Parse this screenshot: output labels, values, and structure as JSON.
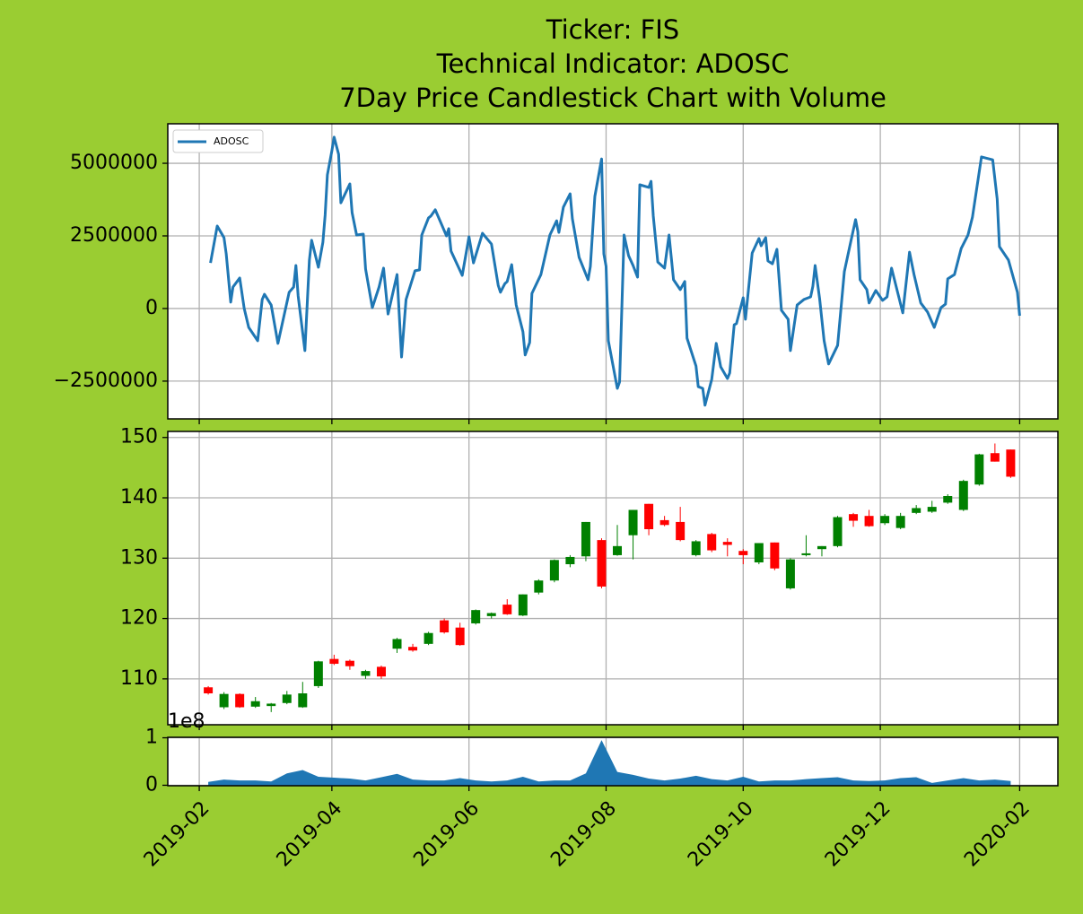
{
  "chart_data": [
    {
      "type": "line",
      "title": [
        "Ticker: FIS",
        "Technical Indicator: ADOSC",
        "7Day Price Candlestick Chart with Volume"
      ],
      "x": [
        "2019-02-06",
        "2019-02-09",
        "2019-02-12",
        "2019-02-13",
        "2019-02-15",
        "2019-02-16",
        "2019-02-19",
        "2019-02-21",
        "2019-02-23",
        "2019-02-27",
        "2019-03-01",
        "2019-03-02",
        "2019-03-05",
        "2019-03-08",
        "2019-03-13",
        "2019-03-15",
        "2019-03-16",
        "2019-03-17",
        "2019-03-20",
        "2019-03-22",
        "2019-03-23",
        "2019-03-26",
        "2019-03-28",
        "2019-03-29",
        "2019-03-30",
        "2019-04-01",
        "2019-04-02",
        "2019-04-04",
        "2019-04-05",
        "2019-04-09",
        "2019-04-10",
        "2019-04-12",
        "2019-04-15",
        "2019-04-16",
        "2019-04-19",
        "2019-04-22",
        "2019-04-24",
        "2019-04-26",
        "2019-04-30",
        "2019-05-02",
        "2019-05-04",
        "2019-05-08",
        "2019-05-10",
        "2019-05-11",
        "2019-05-14",
        "2019-05-15",
        "2019-05-17",
        "2019-05-22",
        "2019-05-23",
        "2019-05-24",
        "2019-05-29",
        "2019-06-01",
        "2019-06-03",
        "2019-06-07",
        "2019-06-11",
        "2019-06-14",
        "2019-06-15",
        "2019-06-17",
        "2019-06-18",
        "2019-06-20",
        "2019-06-22",
        "2019-06-25",
        "2019-06-26",
        "2019-06-28",
        "2019-06-29",
        "2019-07-03",
        "2019-07-07",
        "2019-07-10",
        "2019-07-11",
        "2019-07-13",
        "2019-07-16",
        "2019-07-17",
        "2019-07-20",
        "2019-07-24",
        "2019-07-25",
        "2019-07-27",
        "2019-07-30",
        "2019-07-31",
        "2019-08-01",
        "2019-08-02",
        "2019-08-06",
        "2019-08-07",
        "2019-08-09",
        "2019-08-11",
        "2019-08-13",
        "2019-08-15",
        "2019-08-16",
        "2019-08-20",
        "2019-08-21",
        "2019-08-22",
        "2019-08-24",
        "2019-08-27",
        "2019-08-29",
        "2019-08-31",
        "2019-09-03",
        "2019-09-05",
        "2019-09-06",
        "2019-09-10",
        "2019-09-11",
        "2019-09-13",
        "2019-09-14",
        "2019-09-17",
        "2019-09-19",
        "2019-09-21",
        "2019-09-24",
        "2019-09-25",
        "2019-09-27",
        "2019-09-28",
        "2019-10-01",
        "2019-10-02",
        "2019-10-05",
        "2019-10-08",
        "2019-10-09",
        "2019-10-11",
        "2019-10-12",
        "2019-10-14",
        "2019-10-16",
        "2019-10-18",
        "2019-10-21",
        "2019-10-22",
        "2019-10-25",
        "2019-10-28",
        "2019-10-31",
        "2019-11-01",
        "2019-11-02",
        "2019-11-04",
        "2019-11-06",
        "2019-11-08",
        "2019-11-12",
        "2019-11-15",
        "2019-11-18",
        "2019-11-20",
        "2019-11-21",
        "2019-11-22",
        "2019-11-25",
        "2019-11-26",
        "2019-11-29",
        "2019-12-02",
        "2019-12-04",
        "2019-12-06",
        "2019-12-11",
        "2019-12-14",
        "2019-12-16",
        "2019-12-19",
        "2019-12-22",
        "2019-12-25",
        "2019-12-28",
        "2019-12-30",
        "2019-12-31",
        "2020-01-03",
        "2020-01-06",
        "2020-01-09",
        "2020-01-11",
        "2020-01-15",
        "2020-01-20",
        "2020-01-22",
        "2020-01-23",
        "2020-01-27",
        "2020-01-31",
        "2020-02-01"
      ],
      "series": [
        {
          "name": "ADOSC",
          "color": "#1f77b4",
          "values": [
            1570000,
            2840000,
            2440000,
            1880000,
            220000,
            740000,
            1050000,
            0,
            -650000,
            -1110000,
            310000,
            490000,
            120000,
            -1200000,
            560000,
            740000,
            1480000,
            430000,
            -1450000,
            1670000,
            2350000,
            1420000,
            2280000,
            3210000,
            4600000,
            5430000,
            5900000,
            5310000,
            3640000,
            4290000,
            3300000,
            2530000,
            2560000,
            1360000,
            30000,
            740000,
            1390000,
            -190000,
            1170000,
            -1670000,
            310000,
            1300000,
            1330000,
            2530000,
            3120000,
            3180000,
            3400000,
            2500000,
            2750000,
            1980000,
            1140000,
            2470000,
            1570000,
            2590000,
            2220000,
            800000,
            560000,
            860000,
            930000,
            1510000,
            120000,
            -800000,
            -1600000,
            -1170000,
            520000,
            1170000,
            2530000,
            3020000,
            2620000,
            3490000,
            3950000,
            3090000,
            1760000,
            990000,
            1450000,
            3860000,
            5150000,
            1880000,
            1450000,
            -1110000,
            -2750000,
            -2530000,
            2530000,
            1820000,
            1480000,
            1080000,
            4260000,
            4170000,
            4380000,
            3180000,
            1600000,
            1390000,
            2530000,
            990000,
            650000,
            930000,
            -1020000,
            -1980000,
            -2690000,
            -2750000,
            -3330000,
            -2440000,
            -1200000,
            -2010000,
            -2410000,
            -2220000,
            -560000,
            -520000,
            370000,
            -370000,
            1910000,
            2410000,
            2160000,
            2440000,
            1640000,
            1540000,
            2040000,
            -60000,
            -370000,
            -1450000,
            120000,
            310000,
            400000,
            770000,
            1480000,
            340000,
            -1110000,
            -1910000,
            -1270000,
            1270000,
            2350000,
            3060000,
            2650000,
            990000,
            650000,
            190000,
            620000,
            280000,
            400000,
            1390000,
            -150000,
            1940000,
            1170000,
            190000,
            -120000,
            -650000,
            30000,
            150000,
            1020000,
            1170000,
            2070000,
            2530000,
            3150000,
            5220000,
            5120000,
            3770000,
            2130000,
            1670000,
            560000,
            -250000
          ]
        }
      ],
      "xlim": [
        "2019-01-18",
        "2020-02-18"
      ],
      "xticks": [
        "2019-02-01",
        "2019-04-01",
        "2019-06-01",
        "2019-08-01",
        "2019-10-01",
        "2019-12-01",
        "2020-02-01"
      ],
      "ylim": [
        -3800000,
        6360000
      ],
      "yticks": [
        {
          "value": -2500000,
          "label": "−2500000"
        },
        0,
        2500000,
        5000000
      ],
      "grid": true,
      "legend": "upper left"
    },
    {
      "type": "candlestick",
      "x": [
        "2019-02-05",
        "2019-02-12",
        "2019-02-19",
        "2019-02-26",
        "2019-03-05",
        "2019-03-12",
        "2019-03-19",
        "2019-03-26",
        "2019-04-02",
        "2019-04-09",
        "2019-04-16",
        "2019-04-23",
        "2019-04-30",
        "2019-05-07",
        "2019-05-14",
        "2019-05-21",
        "2019-05-28",
        "2019-06-04",
        "2019-06-11",
        "2019-06-18",
        "2019-06-25",
        "2019-07-02",
        "2019-07-09",
        "2019-07-16",
        "2019-07-23",
        "2019-07-30",
        "2019-08-06",
        "2019-08-13",
        "2019-08-20",
        "2019-08-27",
        "2019-09-03",
        "2019-09-10",
        "2019-09-17",
        "2019-09-24",
        "2019-10-01",
        "2019-10-08",
        "2019-10-15",
        "2019-10-22",
        "2019-10-29",
        "2019-11-05",
        "2019-11-12",
        "2019-11-19",
        "2019-11-26",
        "2019-12-03",
        "2019-12-10",
        "2019-12-17",
        "2019-12-24",
        "2019-12-31",
        "2020-01-07",
        "2020-01-14",
        "2020-01-21",
        "2020-01-28"
      ],
      "open": [
        108.6,
        105.3,
        107.5,
        105.4,
        105.5,
        106.0,
        105.3,
        108.8,
        113.3,
        113.0,
        110.5,
        112.0,
        115.0,
        115.3,
        115.8,
        119.7,
        118.5,
        119.2,
        120.4,
        122.3,
        120.5,
        124.3,
        126.3,
        129.0,
        130.3,
        133.0,
        130.5,
        133.8,
        139.0,
        136.3,
        136.0,
        130.5,
        134.0,
        132.7,
        131.2,
        129.3,
        132.6,
        125.0,
        130.5,
        131.5,
        132.0,
        137.3,
        137.0,
        135.8,
        135.0,
        137.5,
        137.7,
        139.2,
        138.0,
        142.2,
        147.4,
        148.0
      ],
      "high": [
        108.8,
        107.8,
        107.6,
        107.0,
        106.0,
        108.0,
        109.5,
        113.0,
        114.0,
        113.2,
        111.5,
        112.2,
        116.8,
        115.8,
        117.8,
        120.0,
        119.3,
        121.5,
        121.0,
        123.2,
        124.0,
        126.5,
        129.8,
        130.5,
        136.0,
        133.3,
        135.5,
        138.0,
        139.0,
        137.0,
        138.5,
        133.0,
        134.2,
        133.3,
        131.5,
        132.5,
        132.6,
        130.0,
        133.8,
        132.0,
        137.0,
        137.5,
        138.0,
        137.3,
        137.5,
        138.8,
        139.5,
        140.6,
        143.0,
        147.3,
        149.0,
        148.0
      ],
      "low": [
        107.4,
        105.0,
        105.2,
        105.2,
        104.5,
        105.8,
        105.2,
        108.5,
        112.3,
        111.5,
        110.0,
        110.0,
        114.3,
        114.5,
        115.6,
        117.5,
        115.5,
        119.0,
        120.0,
        120.6,
        120.4,
        124.0,
        126.0,
        128.5,
        129.5,
        125.0,
        130.4,
        129.8,
        133.8,
        135.3,
        132.8,
        130.3,
        131.0,
        130.3,
        129.0,
        129.0,
        128.0,
        124.8,
        130.3,
        130.3,
        131.8,
        135.2,
        135.2,
        135.5,
        134.8,
        137.3,
        137.5,
        139.0,
        137.8,
        142.0,
        146.0,
        143.3
      ],
      "close": [
        107.6,
        107.5,
        105.3,
        106.3,
        105.9,
        107.4,
        107.6,
        112.9,
        112.5,
        112.1,
        111.3,
        110.4,
        116.6,
        114.7,
        117.6,
        117.7,
        115.6,
        121.4,
        120.9,
        120.7,
        124.0,
        126.3,
        129.7,
        130.2,
        136.0,
        125.3,
        132.0,
        138.0,
        134.8,
        135.5,
        133.0,
        132.8,
        131.3,
        132.2,
        130.5,
        132.5,
        128.3,
        129.8,
        130.8,
        132.0,
        136.8,
        136.2,
        135.3,
        137.0,
        137.0,
        138.3,
        138.5,
        140.3,
        142.8,
        147.2,
        146.0,
        143.5
      ],
      "up_color": "green",
      "down_color": "red",
      "xlim": [
        "2019-01-18",
        "2020-02-18"
      ],
      "xticks": [
        "2019-02-01",
        "2019-04-01",
        "2019-06-01",
        "2019-08-01",
        "2019-10-01",
        "2019-12-01",
        "2020-02-01"
      ],
      "ylim": [
        102.4,
        151.0
      ],
      "yticks": [
        110,
        120,
        130,
        140,
        150
      ],
      "grid": true
    },
    {
      "type": "area",
      "x": [
        "2019-02-05",
        "2019-02-12",
        "2019-02-19",
        "2019-02-26",
        "2019-03-05",
        "2019-03-12",
        "2019-03-19",
        "2019-03-26",
        "2019-04-02",
        "2019-04-09",
        "2019-04-16",
        "2019-04-23",
        "2019-04-30",
        "2019-05-07",
        "2019-05-14",
        "2019-05-21",
        "2019-05-28",
        "2019-06-04",
        "2019-06-11",
        "2019-06-18",
        "2019-06-25",
        "2019-07-02",
        "2019-07-09",
        "2019-07-16",
        "2019-07-23",
        "2019-07-30",
        "2019-08-06",
        "2019-08-13",
        "2019-08-20",
        "2019-08-27",
        "2019-09-03",
        "2019-09-10",
        "2019-09-17",
        "2019-09-24",
        "2019-10-01",
        "2019-10-08",
        "2019-10-15",
        "2019-10-22",
        "2019-10-29",
        "2019-11-05",
        "2019-11-12",
        "2019-11-19",
        "2019-11-26",
        "2019-12-03",
        "2019-12-10",
        "2019-12-17",
        "2019-12-24",
        "2019-12-31",
        "2020-01-07",
        "2020-01-14",
        "2020-01-21",
        "2020-01-28"
      ],
      "values": [
        7000000,
        12000000,
        10000000,
        10000000,
        8000000,
        25000000,
        32000000,
        18000000,
        16000000,
        14000000,
        10000000,
        17000000,
        24000000,
        12000000,
        10000000,
        10000000,
        15000000,
        10000000,
        8000000,
        10000000,
        18000000,
        8000000,
        10000000,
        10000000,
        25000000,
        95000000,
        28000000,
        22000000,
        14000000,
        10000000,
        14000000,
        20000000,
        13000000,
        10000000,
        18000000,
        8000000,
        10000000,
        10000000,
        13000000,
        15000000,
        17000000,
        10000000,
        9000000,
        10000000,
        15000000,
        17000000,
        5000000,
        10000000,
        15000000,
        10000000,
        12000000,
        9000000
      ],
      "color": "#1f77b4",
      "xlim": [
        "2019-01-18",
        "2020-02-18"
      ],
      "xticks": [
        {
          "value": "2019-02-01",
          "label": "2019-02"
        },
        {
          "value": "2019-04-01",
          "label": "2019-04"
        },
        {
          "value": "2019-06-01",
          "label": "2019-06"
        },
        {
          "value": "2019-08-01",
          "label": "2019-08"
        },
        {
          "value": "2019-10-01",
          "label": "2019-10"
        },
        {
          "value": "2019-12-01",
          "label": "2019-12"
        },
        {
          "value": "2020-02-01",
          "label": "2020-02"
        }
      ],
      "ylim": [
        -1000000,
        101000000
      ],
      "yticks": [
        0,
        {
          "value": 100000000,
          "label": "1"
        }
      ],
      "offset_label": "1e8",
      "grid": true
    }
  ]
}
